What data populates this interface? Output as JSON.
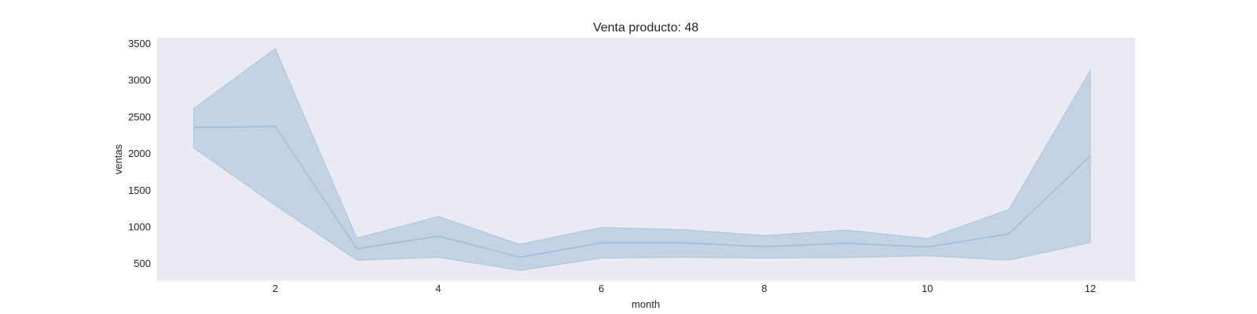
{
  "chart_data": {
    "type": "line",
    "title": "Venta producto: 48",
    "xlabel": "month",
    "ylabel": "ventas",
    "xlim": [
      0.55,
      12.55
    ],
    "ylim": [
      255,
      3575
    ],
    "x_ticks": [
      2,
      4,
      6,
      8,
      10,
      12
    ],
    "y_ticks": [
      500,
      1000,
      1500,
      2000,
      2500,
      3000,
      3500
    ],
    "grid": false,
    "legend": "none",
    "colors": {
      "background": "#EAEAF2",
      "line": "#9EBCDA",
      "band": "#C3D3E4"
    },
    "series": [
      {
        "x": [
          1,
          2,
          3,
          4,
          5,
          6,
          7,
          8,
          9,
          10,
          11,
          12
        ],
        "y": [
          2350,
          2365,
          695,
          870,
          580,
          775,
          775,
          725,
          770,
          720,
          895,
          1965
        ],
        "ci_lower": [
          2070,
          1290,
          540,
          580,
          400,
          570,
          580,
          570,
          575,
          600,
          540,
          780
        ],
        "ci_upper": [
          2610,
          3425,
          840,
          1135,
          755,
          985,
          955,
          875,
          950,
          835,
          1230,
          3130
        ]
      }
    ]
  }
}
